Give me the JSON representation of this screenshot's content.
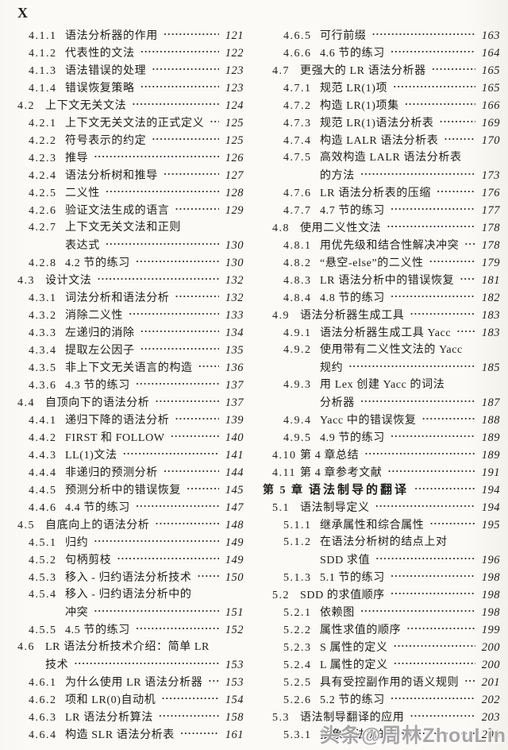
{
  "page": {
    "header": "X"
  },
  "watermark": {
    "text": "头条@周林ZhouLin",
    "color": "#9e9e9e"
  },
  "toc": {
    "leader_char": "·",
    "left_column": [
      {
        "level": "sub",
        "num": "4.1.1",
        "title": "语法分析器的作用",
        "page": "121"
      },
      {
        "level": "sub",
        "num": "4.1.2",
        "title": "代表性的文法",
        "page": "122"
      },
      {
        "level": "sub",
        "num": "4.1.3",
        "title": "语法错误的处理",
        "page": "123"
      },
      {
        "level": "sub",
        "num": "4.1.4",
        "title": "错误恢复策略",
        "page": "123"
      },
      {
        "level": "section",
        "num": "4.2",
        "title": "上下文无关文法",
        "page": "124"
      },
      {
        "level": "sub",
        "num": "4.2.1",
        "title": "上下文无关文法的正式定义",
        "page": "125"
      },
      {
        "level": "sub",
        "num": "4.2.2",
        "title": "符号表示的约定",
        "page": "125"
      },
      {
        "level": "sub",
        "num": "4.2.3",
        "title": "推导",
        "page": "126"
      },
      {
        "level": "sub",
        "num": "4.2.4",
        "title": "语法分析树和推导",
        "page": "127"
      },
      {
        "level": "sub",
        "num": "4.2.5",
        "title": "二义性",
        "page": "128"
      },
      {
        "level": "sub",
        "num": "4.2.6",
        "title": "验证文法生成的语言",
        "page": "129"
      },
      {
        "level": "sub",
        "num": "4.2.7",
        "title": "上下文无关文法和正则",
        "title2": "表达式",
        "page": "130"
      },
      {
        "level": "sub",
        "num": "4.2.8",
        "title": "4.2 节的练习",
        "page": "130"
      },
      {
        "level": "section",
        "num": "4.3",
        "title": "设计文法",
        "page": "132"
      },
      {
        "level": "sub",
        "num": "4.3.1",
        "title": "词法分析和语法分析",
        "page": "132"
      },
      {
        "level": "sub",
        "num": "4.3.2",
        "title": "消除二义性",
        "page": "133"
      },
      {
        "level": "sub",
        "num": "4.3.3",
        "title": "左递归的消除",
        "page": "134"
      },
      {
        "level": "sub",
        "num": "4.3.4",
        "title": "提取左公因子",
        "page": "135"
      },
      {
        "level": "sub",
        "num": "4.3.5",
        "title": "非上下文无关语言的构造",
        "page": "136"
      },
      {
        "level": "sub",
        "num": "4.3.6",
        "title": "4.3 节的练习",
        "page": "137"
      },
      {
        "level": "section",
        "num": "4.4",
        "title": "自顶向下的语法分析",
        "page": "137"
      },
      {
        "level": "sub",
        "num": "4.4.1",
        "title": "递归下降的语法分析",
        "page": "139"
      },
      {
        "level": "sub",
        "num": "4.4.2",
        "title": "FIRST 和 FOLLOW",
        "page": "140"
      },
      {
        "level": "sub",
        "num": "4.4.3",
        "title": "LL(1)文法",
        "page": "141"
      },
      {
        "level": "sub",
        "num": "4.4.4",
        "title": "非递归的预测分析",
        "page": "144"
      },
      {
        "level": "sub",
        "num": "4.4.5",
        "title": "预测分析中的错误恢复",
        "page": "145"
      },
      {
        "level": "sub",
        "num": "4.4.6",
        "title": "4.4 节的练习",
        "page": "147"
      },
      {
        "level": "section",
        "num": "4.5",
        "title": "自底向上的语法分析",
        "page": "148"
      },
      {
        "level": "sub",
        "num": "4.5.1",
        "title": "归约",
        "page": "149"
      },
      {
        "level": "sub",
        "num": "4.5.2",
        "title": "句柄剪枝",
        "page": "149"
      },
      {
        "level": "sub",
        "num": "4.5.3",
        "title": "移入 - 归约语法分析技术",
        "page": "150"
      },
      {
        "level": "sub",
        "num": "4.5.4",
        "title": "移入 - 归约语法分析中的",
        "title2": "冲突",
        "page": "151"
      },
      {
        "level": "sub",
        "num": "4.5.5",
        "title": "4.5 节的练习",
        "page": "152"
      },
      {
        "level": "section",
        "num": "4.6",
        "title": "LR 语法分析技术介绍：简单 LR",
        "title2": "技术",
        "page": "153"
      },
      {
        "level": "sub",
        "num": "4.6.1",
        "title": "为什么使用 LR 语法分析器",
        "page": "153"
      },
      {
        "level": "sub",
        "num": "4.6.2",
        "title": "项和 LR(0)自动机",
        "page": "154"
      },
      {
        "level": "sub",
        "num": "4.6.3",
        "title": "LR 语法分析算法",
        "page": "158"
      },
      {
        "level": "sub",
        "num": "4.6.4",
        "title": "构造 SLR 语法分析表",
        "page": "161"
      }
    ],
    "right_column": [
      {
        "level": "sub",
        "num": "4.6.5",
        "title": "可行前缀",
        "page": "163"
      },
      {
        "level": "sub",
        "num": "4.6.6",
        "title": "4.6 节的练习",
        "page": "164"
      },
      {
        "level": "section",
        "num": "4.7",
        "title": "更强大的 LR 语法分析器",
        "page": "165"
      },
      {
        "level": "sub",
        "num": "4.7.1",
        "title": "规范 LR(1)项",
        "page": "165"
      },
      {
        "level": "sub",
        "num": "4.7.2",
        "title": "构造 LR(1)项集",
        "page": "166"
      },
      {
        "level": "sub",
        "num": "4.7.3",
        "title": "规范 LR(1)语法分析表",
        "page": "169"
      },
      {
        "level": "sub",
        "num": "4.7.4",
        "title": "构造 LALR 语法分析表",
        "page": "170"
      },
      {
        "level": "sub",
        "num": "4.7.5",
        "title": "高效构造 LALR 语法分析表",
        "title2": "的方法",
        "page": "173"
      },
      {
        "level": "sub",
        "num": "4.7.6",
        "title": "LR 语法分析表的压缩",
        "page": "176"
      },
      {
        "level": "sub",
        "num": "4.7.7",
        "title": "4.7 节的练习",
        "page": "177"
      },
      {
        "level": "section",
        "num": "4.8",
        "title": "使用二义性文法",
        "page": "178"
      },
      {
        "level": "sub",
        "num": "4.8.1",
        "title": "用优先级和结合性解决冲突",
        "page": "178"
      },
      {
        "level": "sub",
        "num": "4.8.2",
        "title": "“悬空-else”的二义性",
        "page": "179"
      },
      {
        "level": "sub",
        "num": "4.8.3",
        "title": "LR 语法分析中的错误恢复",
        "page": "181"
      },
      {
        "level": "sub",
        "num": "4.8.4",
        "title": "4.8 节的练习",
        "page": "182"
      },
      {
        "level": "section",
        "num": "4.9",
        "title": "语法分析器生成工具",
        "page": "183"
      },
      {
        "level": "sub",
        "num": "4.9.1",
        "title": "语法分析器生成工具 Yacc",
        "page": "183"
      },
      {
        "level": "sub",
        "num": "4.9.2",
        "title": "使用带有二义性文法的 Yacc",
        "title2": "规约",
        "page": "185"
      },
      {
        "level": "sub",
        "num": "4.9.3",
        "title": "用 Lex 创建 Yacc 的词法",
        "title2": "分析器",
        "page": "187"
      },
      {
        "level": "sub",
        "num": "4.9.4",
        "title": "Yacc 中的错误恢复",
        "page": "188"
      },
      {
        "level": "sub",
        "num": "4.9.5",
        "title": "4.9 节的练习",
        "page": "189"
      },
      {
        "level": "section",
        "num": "4.10",
        "title": "第 4 章总结",
        "page": "189"
      },
      {
        "level": "section",
        "num": "4.11",
        "title": "第 4 章参考文献",
        "page": "191"
      },
      {
        "level": "chapter",
        "num": "第 5 章",
        "title": "语法制导的翻译",
        "page": "194"
      },
      {
        "level": "section",
        "num": "5.1",
        "title": "语法制导定义",
        "page": "194"
      },
      {
        "level": "sub",
        "num": "5.1.1",
        "title": "继承属性和综合属性",
        "page": "195"
      },
      {
        "level": "sub",
        "num": "5.1.2",
        "title": "在语法分析树的结点上对",
        "title2": "SDD 求值",
        "page": "196"
      },
      {
        "level": "sub",
        "num": "5.1.3",
        "title": "5.1 节的练习",
        "page": "198"
      },
      {
        "level": "section",
        "num": "5.2",
        "title": "SDD 的求值顺序",
        "page": "198"
      },
      {
        "level": "sub",
        "num": "5.2.1",
        "title": "依赖图",
        "page": "198"
      },
      {
        "level": "sub",
        "num": "5.2.2",
        "title": "属性求值的顺序",
        "page": "199"
      },
      {
        "level": "sub",
        "num": "5.2.3",
        "title": "S 属性的定义",
        "page": "200"
      },
      {
        "level": "sub",
        "num": "5.2.4",
        "title": "L 属性的定义",
        "page": "200"
      },
      {
        "level": "sub",
        "num": "5.2.5",
        "title": "具有受控副作用的语义规则",
        "page": "201"
      },
      {
        "level": "sub",
        "num": "5.2.6",
        "title": "5.2 节的练习",
        "page": "202"
      },
      {
        "level": "section",
        "num": "5.3",
        "title": "语法制导翻译的应用",
        "page": "203"
      },
      {
        "level": "sub",
        "num": "5.3.1",
        "title": "抽象语法树的构造",
        "page": "203"
      }
    ]
  }
}
